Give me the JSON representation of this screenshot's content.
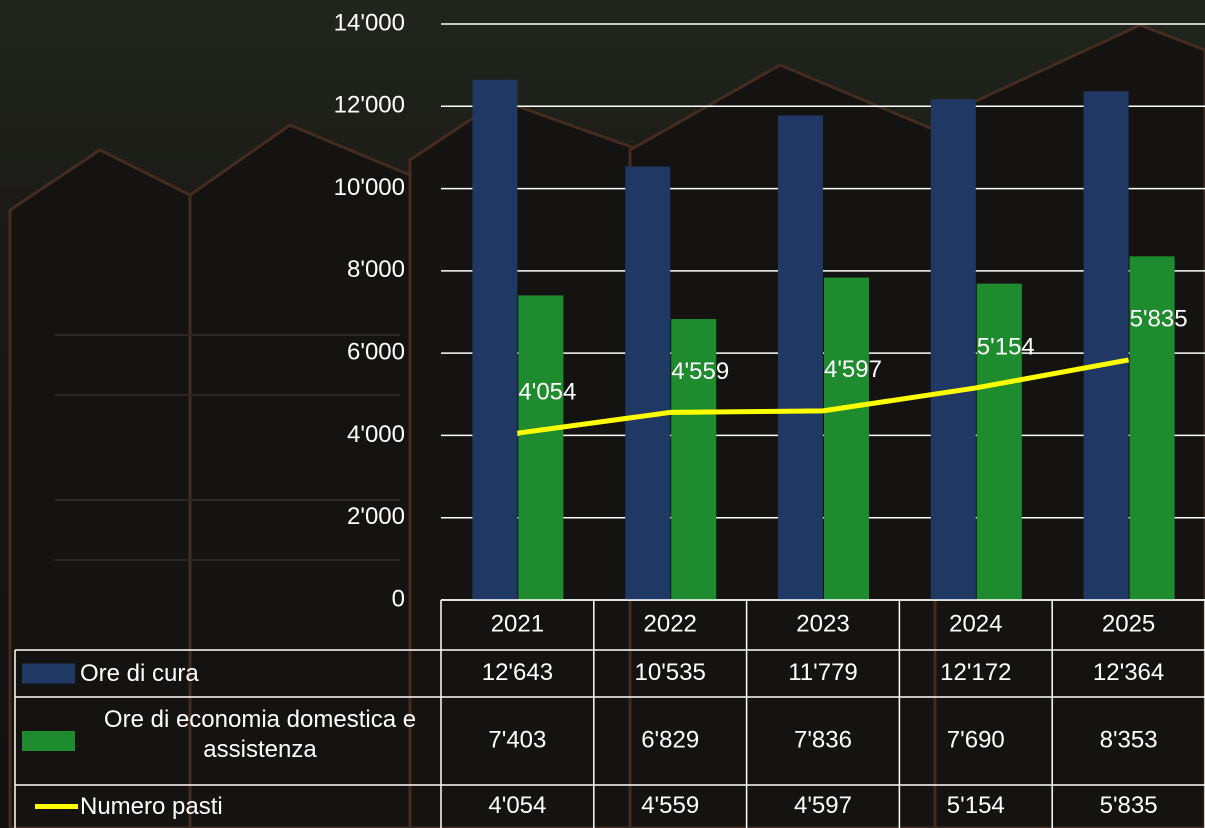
{
  "chart_data": {
    "type": "bar",
    "categories": [
      "2021",
      "2022",
      "2023",
      "2024",
      "2025"
    ],
    "series": [
      {
        "name": "Ore di cura",
        "color": "#1f3864",
        "type": "bar",
        "values": [
          12643,
          10535,
          11779,
          12172,
          12364
        ],
        "value_labels": [
          "12'643",
          "10'535",
          "11'779",
          "12'172",
          "12'364"
        ]
      },
      {
        "name": "Ore di economia domestica e assistenza",
        "color": "#1e8c2e",
        "type": "bar",
        "values": [
          7403,
          6829,
          7836,
          7690,
          8353
        ],
        "value_labels": [
          "7'403",
          "6'829",
          "7'836",
          "7'690",
          "8'353"
        ]
      },
      {
        "name": "Numero pasti",
        "color": "#ffff00",
        "type": "line",
        "values": [
          4054,
          4559,
          4597,
          5154,
          5835
        ],
        "value_labels": [
          "4'054",
          "4'559",
          "4'597",
          "5'154",
          "5'835"
        ]
      }
    ],
    "ylim": [
      0,
      14000
    ],
    "yticks": [
      0,
      {
        "value": 2000,
        "label": "2'000"
      },
      {
        "value": 4000,
        "label": "4'000"
      },
      {
        "value": 6000,
        "label": "6'000"
      },
      {
        "value": 8000,
        "label": "8'000"
      },
      {
        "value": 10000,
        "label": "10'000"
      },
      {
        "value": 12000,
        "label": "12'000"
      },
      {
        "value": 14000,
        "label": "14'000"
      }
    ],
    "grid": true
  }
}
